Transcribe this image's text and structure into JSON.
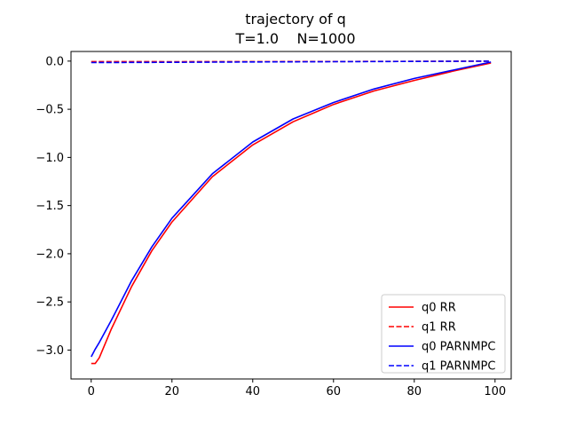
{
  "chart_data": {
    "type": "line",
    "title": "trajectory of q",
    "subtitle": "T=1.0    N=1000",
    "xlabel": "",
    "ylabel": "",
    "xlim": [
      -5,
      104
    ],
    "ylim": [
      -3.3,
      0.1
    ],
    "xticks": [
      0,
      20,
      40,
      60,
      80,
      100
    ],
    "yticks": [
      0.0,
      -0.5,
      -1.0,
      -1.5,
      -2.0,
      -2.5,
      -3.0
    ],
    "ytick_labels": [
      "0.0",
      "−0.5",
      "−1.0",
      "−1.5",
      "−2.0",
      "−2.5",
      "−3.0"
    ],
    "grid": false,
    "legend_position": "lower-right",
    "series": [
      {
        "name": "q0 RR",
        "color": "#ff0000",
        "style": "solid",
        "x": [
          0,
          1,
          2,
          5,
          10,
          15,
          20,
          30,
          40,
          50,
          60,
          70,
          80,
          90,
          99
        ],
        "y": [
          -3.14,
          -3.14,
          -3.08,
          -2.78,
          -2.34,
          -1.97,
          -1.67,
          -1.2,
          -0.87,
          -0.63,
          -0.45,
          -0.31,
          -0.2,
          -0.1,
          -0.02
        ]
      },
      {
        "name": "q1 RR",
        "color": "#ff0000",
        "style": "dashed",
        "x": [
          0,
          20,
          40,
          60,
          80,
          99
        ],
        "y": [
          -0.005,
          -0.006,
          -0.005,
          -0.004,
          -0.002,
          0.0
        ]
      },
      {
        "name": "q0 PARNMPC",
        "color": "#0000ff",
        "style": "solid",
        "x": [
          0,
          1,
          2,
          5,
          10,
          15,
          20,
          30,
          40,
          50,
          60,
          70,
          80,
          90,
          99
        ],
        "y": [
          -3.07,
          -2.99,
          -2.92,
          -2.69,
          -2.28,
          -1.93,
          -1.63,
          -1.17,
          -0.84,
          -0.6,
          -0.43,
          -0.29,
          -0.18,
          -0.09,
          -0.01
        ]
      },
      {
        "name": "q1 PARNMPC",
        "color": "#0000ff",
        "style": "dashed",
        "x": [
          0,
          20,
          40,
          60,
          80,
          99
        ],
        "y": [
          -0.015,
          -0.012,
          -0.009,
          -0.006,
          -0.003,
          0.0
        ]
      }
    ]
  }
}
